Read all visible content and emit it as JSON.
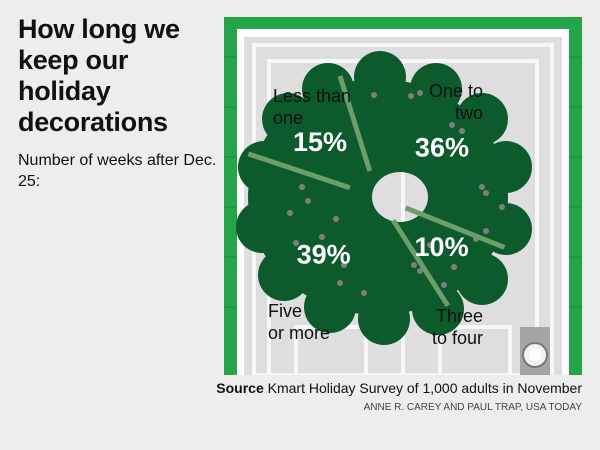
{
  "title": "How long we keep our holiday decorations",
  "subtitle": "Number of weeks after Dec. 25:",
  "chart_data": {
    "type": "pie",
    "style": "wreath",
    "slices": [
      {
        "label_lines": [
          "Less than",
          "one"
        ],
        "value": 15,
        "value_label": "15%"
      },
      {
        "label_lines": [
          "One to",
          "two"
        ],
        "value": 36,
        "value_label": "36%"
      },
      {
        "label_lines": [
          "Three",
          "to four"
        ],
        "value": 10,
        "value_label": "10%"
      },
      {
        "label_lines": [
          "Five",
          "or more"
        ],
        "value": 39,
        "value_label": "39%"
      }
    ]
  },
  "source": {
    "label": "Source",
    "text": "Kmart Holiday Survey of 1,000 adults in November"
  },
  "credit": "ANNE R. CAREY AND PAUL TRAP, USA TODAY",
  "colors": {
    "wreath": "#0d5b2c",
    "divider": "#6b9e6a",
    "frame": "#25a44a",
    "door": "#dedede",
    "background": "#ededed"
  }
}
